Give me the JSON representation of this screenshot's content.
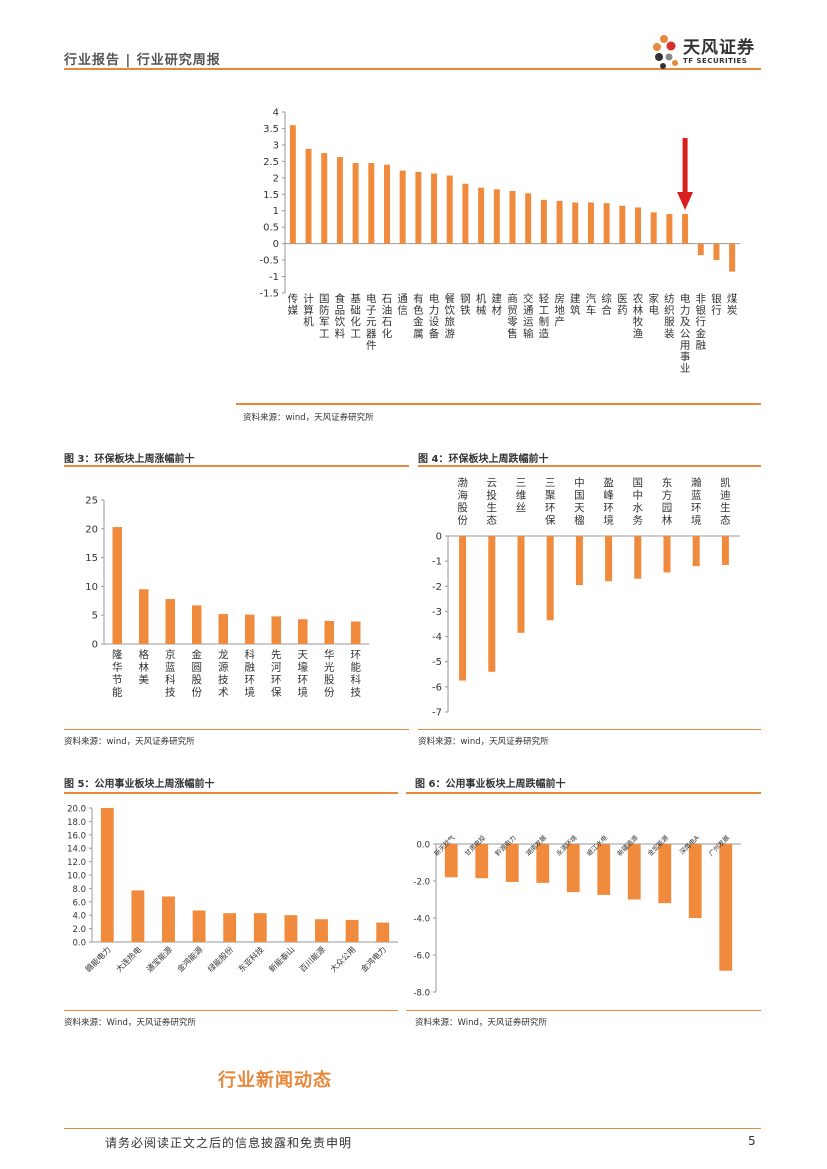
{
  "header": {
    "left_text": "行业报告 | 行业研究周报",
    "logo_cn": "天风证券",
    "logo_en": "TF SECURITIES"
  },
  "colors": {
    "bar": "#f08a3c",
    "accent": "#e8883a",
    "arrow": "#d91e1e"
  },
  "chart_data": [
    {
      "id": "chart1",
      "type": "bar",
      "title": "",
      "categories": [
        "传媒",
        "计算机",
        "国防军工",
        "食品饮料",
        "基础化工",
        "电子元器件",
        "石油石化",
        "通信",
        "有色金属",
        "电力设备",
        "餐饮旅游",
        "钢铁",
        "机械",
        "建材",
        "商贸零售",
        "交通运输",
        "轻工制造",
        "房地产",
        "建筑",
        "汽车",
        "综合",
        "医药",
        "农林牧渔",
        "家电",
        "纺织服装",
        "电力及公用事业",
        "非银行金融",
        "银行",
        "煤炭"
      ],
      "values": [
        3.6,
        2.88,
        2.75,
        2.63,
        2.45,
        2.45,
        2.4,
        2.22,
        2.18,
        2.13,
        2.07,
        1.82,
        1.7,
        1.65,
        1.6,
        1.53,
        1.33,
        1.3,
        1.25,
        1.25,
        1.23,
        1.15,
        1.1,
        0.95,
        0.9,
        0.9,
        -0.35,
        -0.5,
        -0.85
      ],
      "ylim": [
        -1.5,
        4
      ],
      "yticks": [
        "4",
        "3.5",
        "3",
        "2.5",
        "2",
        "1.5",
        "1",
        "0.5",
        "0",
        "-0.5",
        "-1",
        "-1.5"
      ],
      "highlight_category": "电力及公用事业",
      "source": "资料来源：wind，天风证券研究所"
    },
    {
      "id": "chart3",
      "type": "bar",
      "title": "图 3：环保板块上周涨幅前十",
      "categories": [
        "隆华节能",
        "格林美",
        "京蓝科技",
        "金圆股份",
        "龙源技术",
        "科融环境",
        "先河环保",
        "天壕环境",
        "华光股份",
        "环能科技"
      ],
      "values": [
        20.3,
        9.5,
        7.8,
        6.7,
        5.2,
        5.1,
        4.8,
        4.3,
        4.0,
        3.9
      ],
      "ylim": [
        0,
        25
      ],
      "yticks": [
        "25",
        "20",
        "15",
        "10",
        "5",
        "0"
      ],
      "source": "资料来源：wind，天风证券研究所"
    },
    {
      "id": "chart4",
      "type": "bar",
      "title": "图 4：环保板块上周跌幅前十",
      "categories": [
        "渤海股份",
        "云投生态",
        "三维丝",
        "三聚环保",
        "中国天楹",
        "盈峰环境",
        "国中水务",
        "东方园林",
        "瀚蓝环境",
        "凯迪生态"
      ],
      "values": [
        -5.75,
        -5.4,
        -3.85,
        -3.35,
        -1.95,
        -1.8,
        -1.7,
        -1.45,
        -1.2,
        -1.15
      ],
      "ylim": [
        -7,
        0
      ],
      "yticks": [
        "0",
        "-1",
        "-2",
        "-3",
        "-4",
        "-5",
        "-6",
        "-7"
      ],
      "source": "资料来源：wind，天风证券研究所"
    },
    {
      "id": "chart5",
      "type": "bar",
      "title": "图 5：公用事业板块上周涨幅前十",
      "categories": [
        "赣能电力",
        "大连热电",
        "通宝能源",
        "金鸿能源",
        "绿能股份",
        "东亚科技",
        "新能泰山",
        "百川能源",
        "大众公用",
        "金鸿电力"
      ],
      "values": [
        20.0,
        7.7,
        6.8,
        4.7,
        4.3,
        4.3,
        4.0,
        3.4,
        3.3,
        2.9
      ],
      "ylim": [
        0,
        20
      ],
      "yticks": [
        "20.0",
        "18.0",
        "16.0",
        "14.0",
        "12.0",
        "10.0",
        "8.0",
        "6.0",
        "4.0",
        "2.0",
        "0.0"
      ],
      "source": "资料来源：Wind，天风证券研究所"
    },
    {
      "id": "chart6",
      "type": "bar",
      "title": "图 6：公用事业板块上周跌幅前十",
      "categories": [
        "新天然气",
        "甘肃电投",
        "黔源电力",
        "湖南发展",
        "永清环境",
        "岷江水电",
        "新疆浩源",
        "金宏能源",
        "深南电A",
        "广州发展"
      ],
      "values": [
        -1.8,
        -1.85,
        -2.05,
        -2.1,
        -2.6,
        -2.75,
        -3.0,
        -3.2,
        -4.0,
        -6.85
      ],
      "ylim": [
        -8,
        0
      ],
      "yticks": [
        "0.0",
        "-2.0",
        "-4.0",
        "-6.0",
        "-8.0"
      ],
      "source": "资料来源：Wind，天风证券研究所"
    }
  ],
  "section_title": "行业新闻动态",
  "footer": {
    "text": "请务必阅读正文之后的信息披露和免责申明",
    "page": "5"
  }
}
